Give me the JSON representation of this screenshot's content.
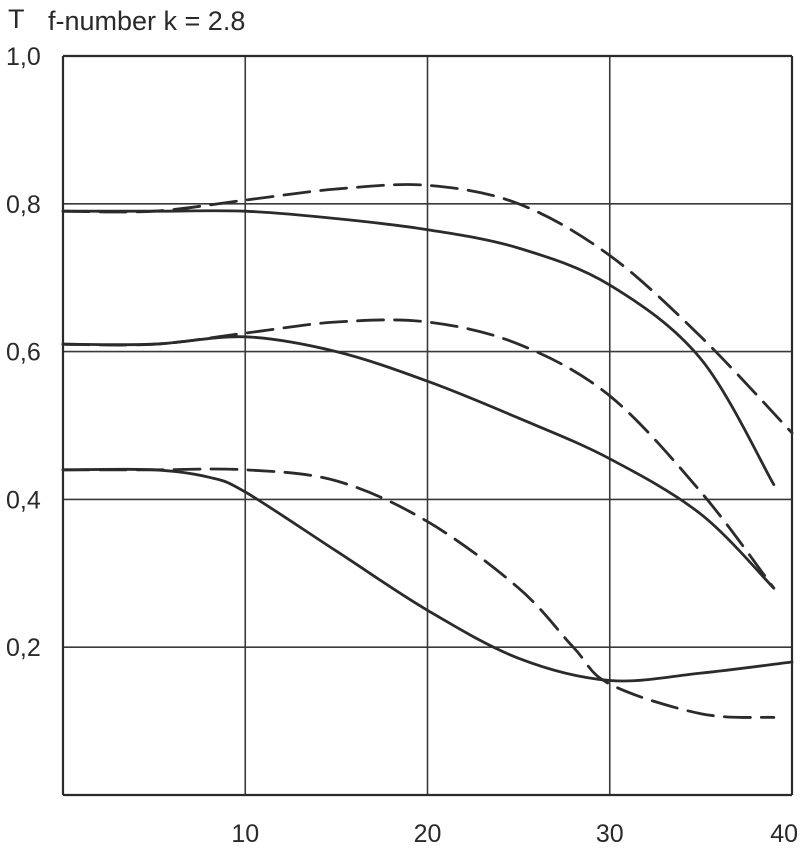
{
  "chart_data": {
    "type": "line",
    "title": "f-number k = 2.8",
    "xlabel": "",
    "ylabel": "T",
    "xlim": [
      0,
      40
    ],
    "ylim": [
      0,
      1.0
    ],
    "xticks": [
      10,
      20,
      30,
      40
    ],
    "xtick_labels": [
      "10",
      "20",
      "30",
      "40"
    ],
    "yticks": [
      0.2,
      0.4,
      0.6,
      0.8,
      1.0
    ],
    "ytick_labels": [
      "0,2",
      "0,4",
      "0,6",
      "0,8",
      "1,0"
    ],
    "grid": true,
    "legend": "none",
    "series": [
      {
        "style": "dashed",
        "points": [
          [
            0,
            0.79
          ],
          [
            5,
            0.79
          ],
          [
            10,
            0.805
          ],
          [
            15,
            0.82
          ],
          [
            20,
            0.825
          ],
          [
            25,
            0.8
          ],
          [
            30,
            0.73
          ],
          [
            35,
            0.62
          ],
          [
            40,
            0.49
          ]
        ]
      },
      {
        "style": "solid",
        "points": [
          [
            0,
            0.79
          ],
          [
            5,
            0.79
          ],
          [
            10,
            0.79
          ],
          [
            15,
            0.78
          ],
          [
            20,
            0.765
          ],
          [
            25,
            0.74
          ],
          [
            30,
            0.69
          ],
          [
            35,
            0.59
          ],
          [
            39,
            0.42
          ]
        ]
      },
      {
        "style": "dashed",
        "points": [
          [
            0,
            0.61
          ],
          [
            5,
            0.61
          ],
          [
            10,
            0.625
          ],
          [
            15,
            0.64
          ],
          [
            20,
            0.64
          ],
          [
            25,
            0.61
          ],
          [
            30,
            0.54
          ],
          [
            35,
            0.41
          ],
          [
            39,
            0.28
          ]
        ]
      },
      {
        "style": "solid",
        "points": [
          [
            0,
            0.61
          ],
          [
            5,
            0.61
          ],
          [
            10,
            0.62
          ],
          [
            15,
            0.6
          ],
          [
            20,
            0.56
          ],
          [
            25,
            0.51
          ],
          [
            30,
            0.455
          ],
          [
            35,
            0.38
          ],
          [
            39,
            0.28
          ]
        ]
      },
      {
        "style": "dashed",
        "points": [
          [
            0,
            0.44
          ],
          [
            5,
            0.44
          ],
          [
            10,
            0.44
          ],
          [
            15,
            0.425
          ],
          [
            20,
            0.37
          ],
          [
            25,
            0.28
          ],
          [
            28,
            0.2
          ],
          [
            30,
            0.15
          ],
          [
            35,
            0.11
          ],
          [
            39,
            0.105
          ]
        ]
      },
      {
        "style": "solid",
        "points": [
          [
            0,
            0.44
          ],
          [
            5,
            0.44
          ],
          [
            8,
            0.43
          ],
          [
            10,
            0.41
          ],
          [
            15,
            0.33
          ],
          [
            20,
            0.25
          ],
          [
            25,
            0.185
          ],
          [
            30,
            0.155
          ],
          [
            35,
            0.165
          ],
          [
            40,
            0.18
          ]
        ]
      }
    ]
  }
}
